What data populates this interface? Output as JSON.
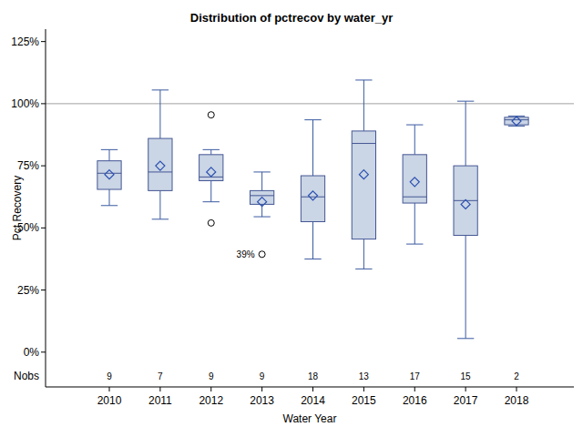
{
  "chart_data": {
    "type": "box",
    "title": "Distribution of pctrecov by water_yr",
    "x_label": "Water Year",
    "y_label": "Pct Recovery",
    "categories": [
      "2010",
      "2011",
      "2012",
      "2013",
      "2014",
      "2015",
      "2016",
      "2017",
      "2018"
    ],
    "boxes": [
      {
        "whisker_low": 59,
        "q1": 65.5,
        "median": 72,
        "q3": 77,
        "whisker_high": 81.5,
        "mean": 71.5,
        "outliers": []
      },
      {
        "whisker_low": 53.5,
        "q1": 65,
        "median": 72.5,
        "q3": 86,
        "whisker_high": 105.5,
        "mean": 75,
        "outliers": []
      },
      {
        "whisker_low": 60.5,
        "q1": 69,
        "median": 70.5,
        "q3": 79.5,
        "whisker_high": 81.5,
        "mean": 72.5,
        "outliers": [
          {
            "value": 95.5
          },
          {
            "value": 52
          }
        ]
      },
      {
        "whisker_low": 54.5,
        "q1": 59.5,
        "median": 63,
        "q3": 65,
        "whisker_high": 72.5,
        "mean": 60.5,
        "outliers": [
          {
            "value": 39.4,
            "label": "39%"
          }
        ]
      },
      {
        "whisker_low": 37.5,
        "q1": 52.5,
        "median": 62.5,
        "q3": 71,
        "whisker_high": 93.5,
        "mean": 63,
        "outliers": []
      },
      {
        "whisker_low": 33.5,
        "q1": 45.5,
        "median": 84,
        "q3": 89,
        "whisker_high": 109.5,
        "mean": 71.5,
        "outliers": []
      },
      {
        "whisker_low": 43.5,
        "q1": 60,
        "median": 62.5,
        "q3": 79.5,
        "whisker_high": 91.5,
        "mean": 68.5,
        "outliers": []
      },
      {
        "whisker_low": 5.5,
        "q1": 47,
        "median": 61,
        "q3": 75,
        "whisker_high": 101,
        "mean": 59.5,
        "outliers": []
      },
      {
        "whisker_low": 91,
        "q1": 91.5,
        "median": 93.5,
        "q3": 94.5,
        "whisker_high": 95,
        "mean": 93,
        "outliers": []
      }
    ],
    "nobs_label": "Nobs",
    "nobs": [
      9,
      7,
      9,
      9,
      18,
      13,
      17,
      15,
      2
    ],
    "reference_lines": [
      100
    ],
    "color": "#cad5e5",
    "marker": "diamond",
    "grid": false,
    "ylim": [
      -14,
      130
    ],
    "yticks": [
      {
        "value": 0,
        "label": "0%"
      },
      {
        "value": 25,
        "label": "25%"
      },
      {
        "value": 50,
        "label": "50%"
      },
      {
        "value": 75,
        "label": "75%"
      },
      {
        "value": 100,
        "label": "100%"
      },
      {
        "value": 125,
        "label": "125%"
      }
    ]
  }
}
